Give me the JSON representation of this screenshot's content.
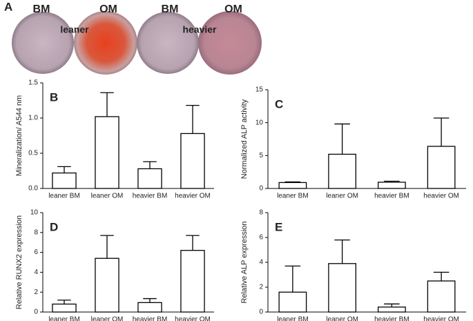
{
  "panel_a": {
    "letter": "A",
    "labels": [
      "BM",
      "leaner",
      "OM",
      "BM",
      "heavier",
      "OM"
    ]
  },
  "chart_data": [
    {
      "type": "bar",
      "annotation": "B",
      "ylabel": "Mineralization/ A544 nm",
      "categories": [
        "leaner BM",
        "leaner OM",
        "heavier BM",
        "heavier OM"
      ],
      "values": [
        0.22,
        1.02,
        0.28,
        0.78
      ],
      "errors": [
        0.09,
        0.34,
        0.1,
        0.4
      ],
      "color": "#ffffff",
      "ylim": [
        0,
        1.5
      ],
      "yticks": [
        {
          "value": 0,
          "label": "0.0"
        },
        0.5,
        {
          "value": 1,
          "label": "1.0"
        },
        1.5
      ]
    },
    {
      "type": "bar",
      "annotation": "C",
      "ylabel": "Normalized ALP activity",
      "categories": [
        "leaner BM",
        "leaner OM",
        "heavier BM",
        "heavier OM"
      ],
      "values": [
        0.9,
        5.2,
        0.95,
        6.4
      ],
      "errors": [
        0.1,
        4.6,
        0.15,
        4.3
      ],
      "color": "#ffffff",
      "ylim": [
        0,
        15
      ],
      "yticks": [
        0,
        5,
        10,
        15
      ]
    },
    {
      "type": "bar",
      "annotation": "D",
      "ylabel": "Relative RUNX2 expression",
      "categories": [
        "leaner BM",
        "leaner OM",
        "heavier BM",
        "heavier OM"
      ],
      "values": [
        0.8,
        5.4,
        0.95,
        6.2
      ],
      "errors": [
        0.4,
        2.3,
        0.4,
        1.5
      ],
      "color": "#ffffff",
      "ylim": [
        0,
        10
      ],
      "yticks": [
        0,
        2,
        4,
        6,
        8,
        10
      ]
    },
    {
      "type": "bar",
      "annotation": "E",
      "ylabel": "Relative ALP expression",
      "categories": [
        "leaner BM",
        "leaner OM",
        "heavier BM",
        "heavier OM"
      ],
      "values": [
        1.6,
        3.9,
        0.4,
        2.5
      ],
      "errors": [
        2.1,
        1.9,
        0.25,
        0.7
      ],
      "color": "#ffffff",
      "ylim": [
        0,
        8
      ],
      "yticks": [
        0,
        2,
        4,
        6,
        8
      ]
    }
  ]
}
